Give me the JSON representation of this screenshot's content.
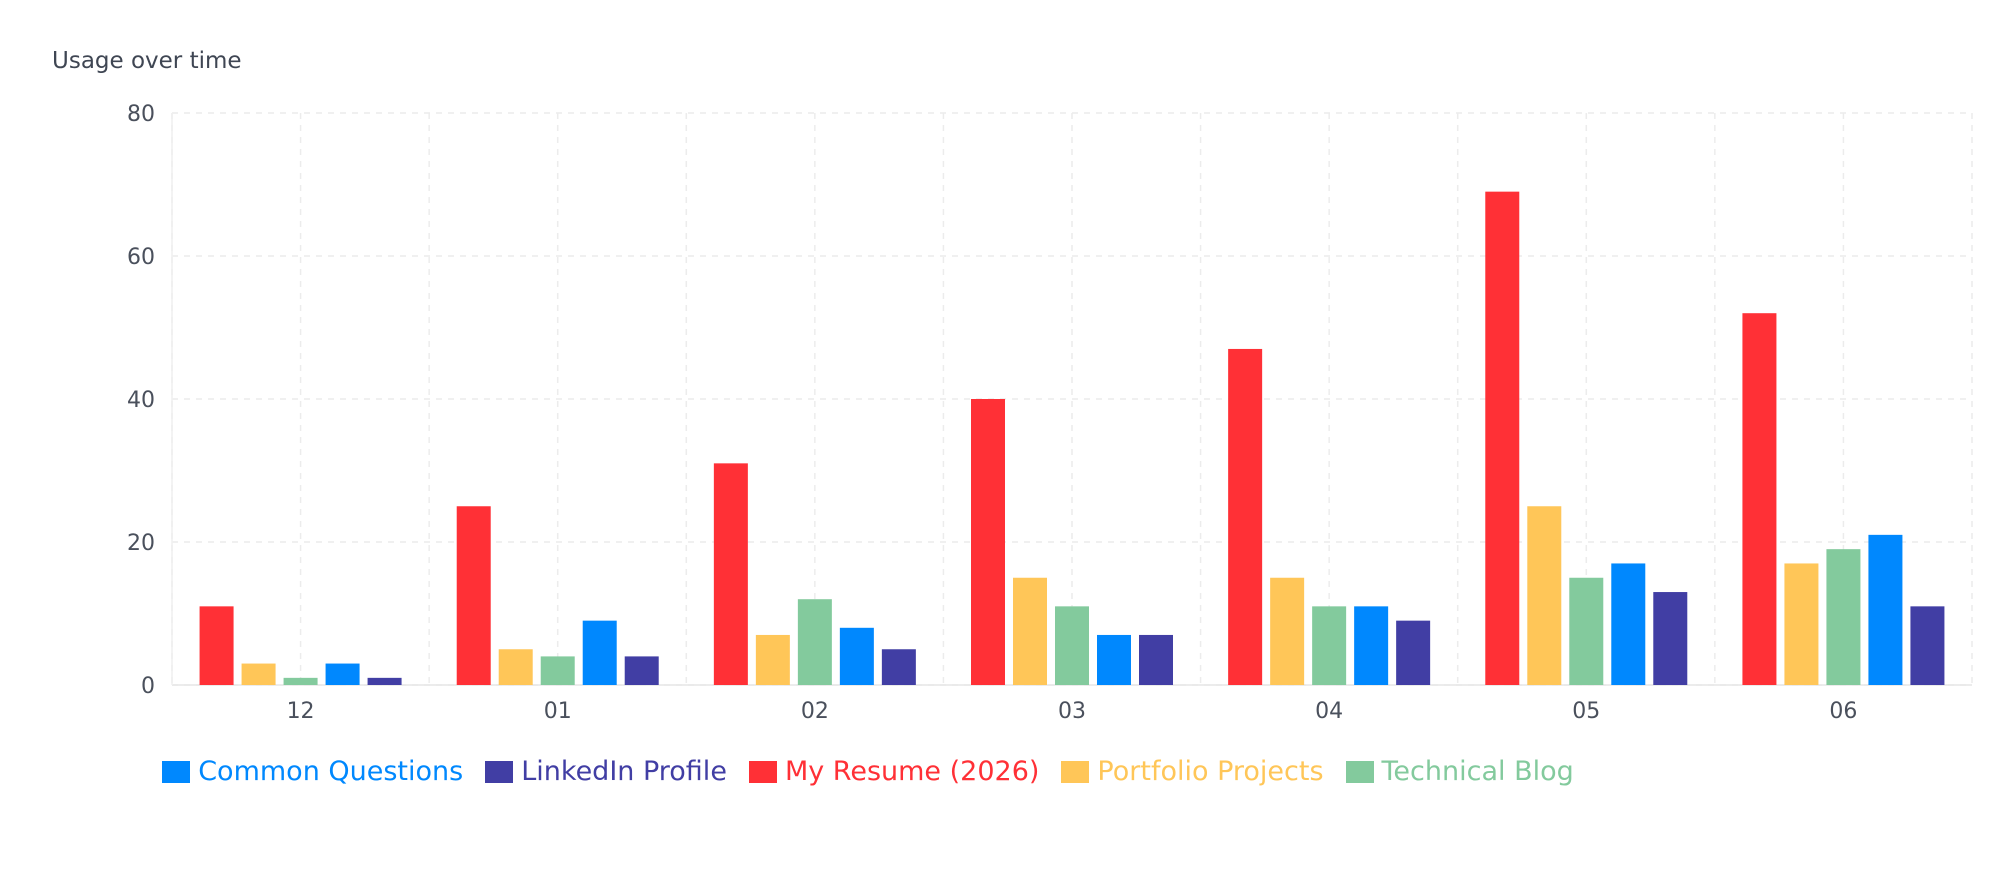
{
  "title": "Usage over time",
  "chart_data": {
    "type": "bar",
    "title": "Usage over time",
    "xlabel": "",
    "ylabel": "",
    "ylim": [
      0,
      80
    ],
    "yticks": [
      0,
      20,
      40,
      60,
      80
    ],
    "grid": true,
    "legend_position": "bottom",
    "categories": [
      "12",
      "01",
      "02",
      "03",
      "04",
      "05",
      "06"
    ],
    "series": [
      {
        "name": "My Resume (2026)",
        "color": "#ff3036",
        "values": [
          11,
          25,
          31,
          40,
          47,
          69,
          52
        ]
      },
      {
        "name": "Portfolio Projects",
        "color": "#ffc658",
        "values": [
          3,
          5,
          7,
          15,
          15,
          25,
          17
        ]
      },
      {
        "name": "Technical Blog",
        "color": "#83ca9d",
        "values": [
          1,
          4,
          12,
          11,
          11,
          15,
          19
        ]
      },
      {
        "name": "Common Questions",
        "color": "#0088fe",
        "values": [
          3,
          9,
          8,
          7,
          11,
          17,
          21
        ]
      },
      {
        "name": "LinkedIn Profile",
        "color": "#413ea4",
        "values": [
          1,
          4,
          5,
          7,
          9,
          13,
          11
        ]
      }
    ],
    "legend_order": [
      "Common Questions",
      "LinkedIn Profile",
      "My Resume (2026)",
      "Portfolio Projects",
      "Technical Blog"
    ]
  }
}
